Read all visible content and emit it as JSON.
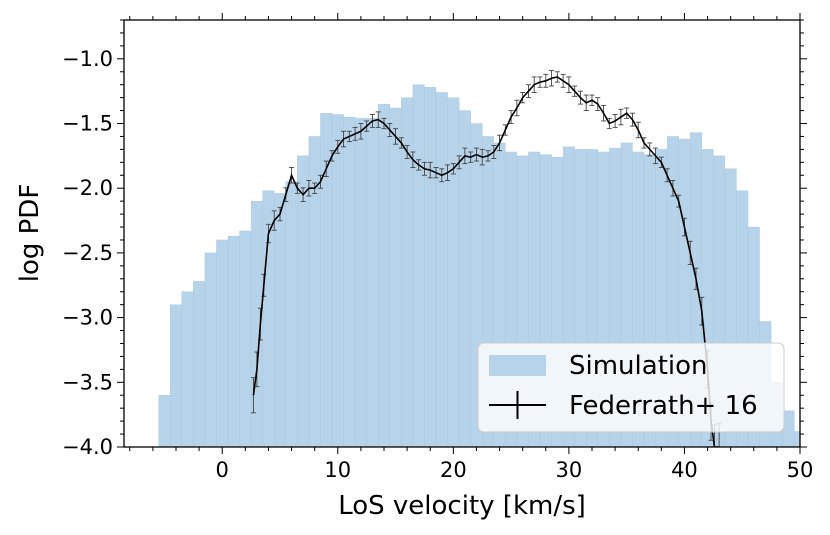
{
  "chart_data": {
    "type": "bar",
    "title": "",
    "xlabel": "LoS velocity [km/s]",
    "ylabel": "log PDF",
    "xlim": [
      -8.5,
      50
    ],
    "ylim": [
      -4.0,
      -0.7
    ],
    "xticks": [
      0,
      10,
      20,
      30,
      40,
      50
    ],
    "yticks": [
      -4.0,
      -3.5,
      -3.0,
      -2.5,
      -2.0,
      -1.5,
      -1.0
    ],
    "xtick_labels": [
      "0",
      "10",
      "20",
      "30",
      "40",
      "50"
    ],
    "ytick_labels": [
      "−4.0",
      "−3.5",
      "−3.0",
      "−2.5",
      "−2.0",
      "−1.5",
      "−1.0"
    ],
    "legend": {
      "position": "lower-right",
      "entries": [
        "Simulation",
        "Federrath+ 16"
      ]
    },
    "series": [
      {
        "name": "Simulation",
        "kind": "histogram",
        "color": "#b7d3e9",
        "bin_width": 1.0,
        "bin_start": -5.5,
        "values": [
          -3.6,
          -2.9,
          -2.8,
          -2.72,
          -2.5,
          -2.4,
          -2.37,
          -2.33,
          -2.1,
          -2.02,
          -2.04,
          -1.95,
          -1.75,
          -1.6,
          -1.42,
          -1.43,
          -1.45,
          -1.46,
          -1.46,
          -1.35,
          -1.38,
          -1.3,
          -1.2,
          -1.22,
          -1.26,
          -1.3,
          -1.4,
          -1.5,
          -1.6,
          -1.65,
          -1.72,
          -1.75,
          -1.72,
          -1.74,
          -1.76,
          -1.68,
          -1.7,
          -1.7,
          -1.72,
          -1.69,
          -1.65,
          -1.72,
          -1.74,
          -1.7,
          -1.6,
          -1.62,
          -1.57,
          -1.7,
          -1.75,
          -1.85,
          -2.02,
          -2.3,
          -3.03,
          -3.5,
          -3.72,
          -3.88
        ]
      },
      {
        "name": "Federrath+ 16",
        "kind": "line-errorbar",
        "color": "#000000",
        "x": [
          2.7,
          3.0,
          3.3,
          3.6,
          4.0,
          4.5,
          5.0,
          5.5,
          6.0,
          6.5,
          7.0,
          7.5,
          8.0,
          8.5,
          9.0,
          9.5,
          10.0,
          10.5,
          11.0,
          11.5,
          12.0,
          12.5,
          13.0,
          13.5,
          14.0,
          14.5,
          15.0,
          15.5,
          16.0,
          16.5,
          17.0,
          17.5,
          18.0,
          18.5,
          19.0,
          19.5,
          20.0,
          20.5,
          21.0,
          21.5,
          22.0,
          22.5,
          23.0,
          23.5,
          24.0,
          24.5,
          25.0,
          25.5,
          26.0,
          26.5,
          27.0,
          27.5,
          28.0,
          28.5,
          29.0,
          29.5,
          30.0,
          30.5,
          31.0,
          31.5,
          32.0,
          32.5,
          33.0,
          33.5,
          34.0,
          34.5,
          35.0,
          35.5,
          36.0,
          36.5,
          37.0,
          37.5,
          38.0,
          38.5,
          39.0,
          39.5,
          40.0,
          40.5,
          41.0,
          41.5,
          42.0,
          42.3,
          42.6,
          43.0
        ],
        "y": [
          -3.6,
          -3.4,
          -3.05,
          -2.75,
          -2.35,
          -2.25,
          -2.2,
          -2.05,
          -1.9,
          -2.0,
          -2.05,
          -2.0,
          -2.0,
          -1.95,
          -1.85,
          -1.75,
          -1.68,
          -1.62,
          -1.6,
          -1.58,
          -1.56,
          -1.52,
          -1.48,
          -1.47,
          -1.5,
          -1.55,
          -1.6,
          -1.65,
          -1.72,
          -1.78,
          -1.82,
          -1.85,
          -1.86,
          -1.88,
          -1.9,
          -1.88,
          -1.85,
          -1.8,
          -1.75,
          -1.76,
          -1.74,
          -1.76,
          -1.75,
          -1.72,
          -1.65,
          -1.55,
          -1.45,
          -1.38,
          -1.3,
          -1.25,
          -1.2,
          -1.18,
          -1.17,
          -1.15,
          -1.14,
          -1.17,
          -1.2,
          -1.25,
          -1.3,
          -1.34,
          -1.32,
          -1.35,
          -1.42,
          -1.5,
          -1.48,
          -1.45,
          -1.42,
          -1.47,
          -1.55,
          -1.65,
          -1.7,
          -1.75,
          -1.8,
          -1.9,
          -2.0,
          -2.1,
          -2.3,
          -2.5,
          -2.7,
          -2.95,
          -3.4,
          -3.8,
          -4.0,
          -4.0
        ]
      }
    ]
  }
}
